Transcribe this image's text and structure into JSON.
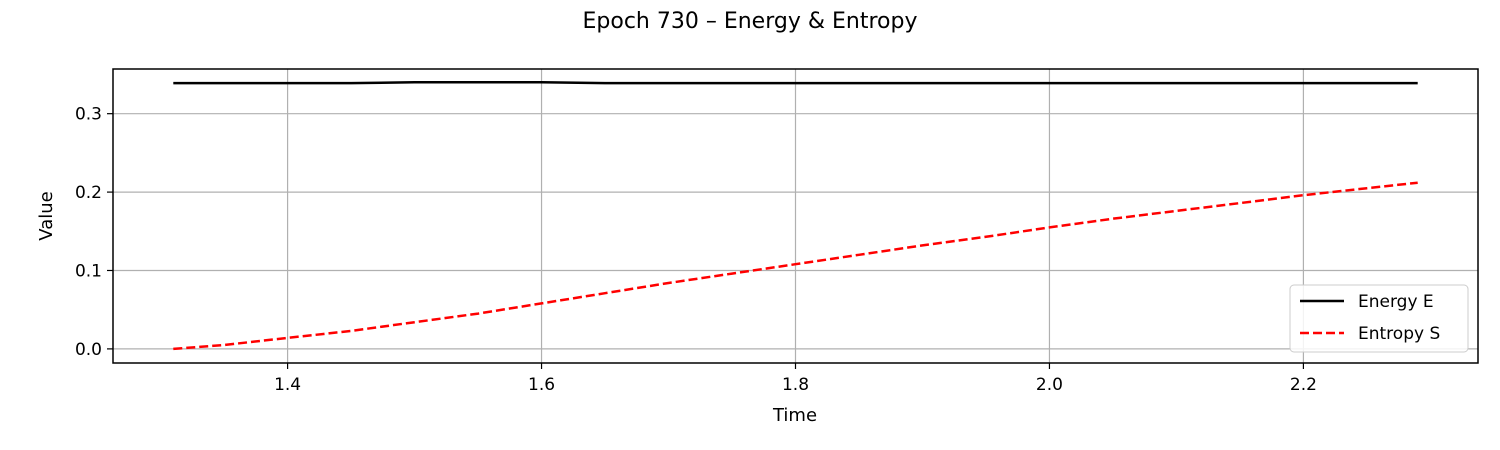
{
  "chart_data": {
    "type": "line",
    "title": "Epoch 730 – Energy & Entropy",
    "xlabel": "Time",
    "ylabel": "Value",
    "xlim": [
      1.2625,
      2.3375
    ],
    "ylim": [
      -0.018,
      0.357
    ],
    "xticks": [
      1.4,
      1.6,
      1.8,
      2.0,
      2.2
    ],
    "xtick_labels": [
      "1.4",
      "1.6",
      "1.8",
      "2.0",
      "2.2"
    ],
    "yticks": [
      0.0,
      0.1,
      0.2,
      0.3
    ],
    "ytick_labels": [
      "0.0",
      "0.1",
      "0.2",
      "0.3"
    ],
    "grid": true,
    "legend_position": "lower-right",
    "series": [
      {
        "name": "Energy E",
        "color": "#000000",
        "style": "solid",
        "x": [
          1.31,
          1.35,
          1.4,
          1.45,
          1.5,
          1.55,
          1.6,
          1.65,
          1.7,
          1.8,
          1.9,
          2.0,
          2.1,
          2.2,
          2.29
        ],
        "y": [
          0.339,
          0.339,
          0.339,
          0.339,
          0.34,
          0.34,
          0.34,
          0.339,
          0.339,
          0.339,
          0.339,
          0.339,
          0.339,
          0.339,
          0.339
        ]
      },
      {
        "name": "Entropy S",
        "color": "#ff0000",
        "style": "dashed",
        "x": [
          1.31,
          1.35,
          1.4,
          1.45,
          1.5,
          1.55,
          1.6,
          1.65,
          1.7,
          1.75,
          1.8,
          1.85,
          1.9,
          1.95,
          2.0,
          2.05,
          2.1,
          2.15,
          2.2,
          2.25,
          2.29
        ],
        "y": [
          0.0,
          0.005,
          0.014,
          0.023,
          0.034,
          0.045,
          0.058,
          0.071,
          0.084,
          0.096,
          0.108,
          0.12,
          0.132,
          0.143,
          0.155,
          0.166,
          0.176,
          0.186,
          0.196,
          0.205,
          0.212
        ]
      }
    ]
  }
}
